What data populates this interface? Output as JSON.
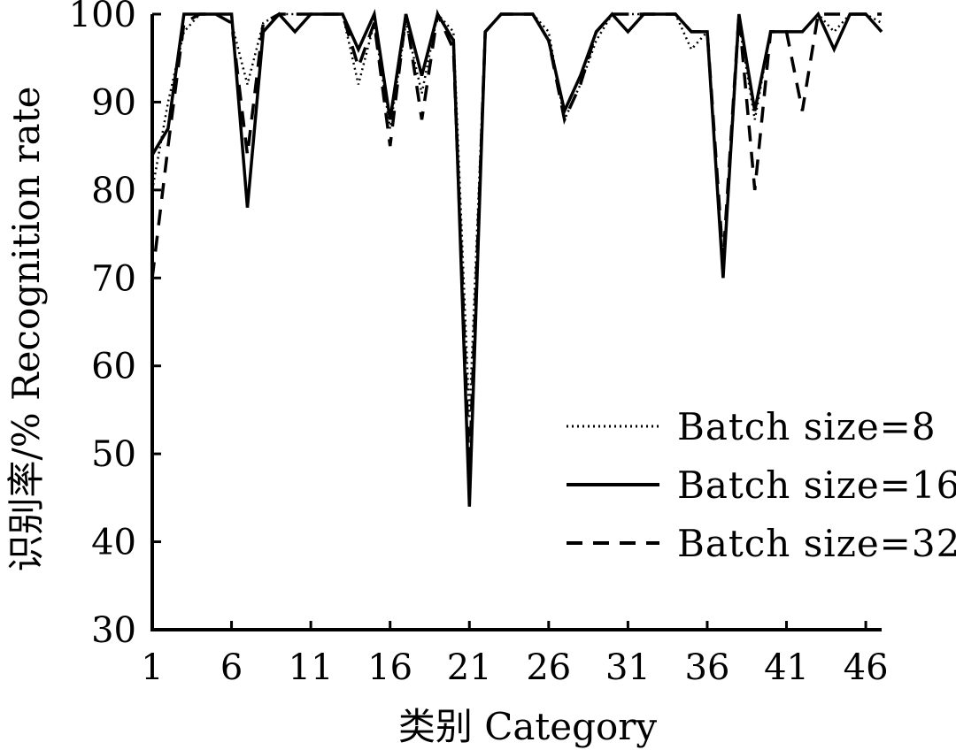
{
  "chart_data": {
    "type": "line",
    "xlabel": "类别 Category",
    "ylabel": "识别率/% Recognition rate",
    "ylim": [
      30,
      100
    ],
    "xlim": [
      1,
      47
    ],
    "yticks": [
      30,
      40,
      50,
      60,
      70,
      80,
      90,
      100
    ],
    "xticks": [
      1,
      6,
      11,
      16,
      21,
      26,
      31,
      36,
      41,
      46
    ],
    "grid": false,
    "legend_position": "right",
    "x": [
      1,
      2,
      3,
      4,
      5,
      6,
      7,
      8,
      9,
      10,
      11,
      12,
      13,
      14,
      15,
      16,
      17,
      18,
      19,
      20,
      21,
      22,
      23,
      24,
      25,
      26,
      27,
      28,
      29,
      30,
      31,
      32,
      33,
      34,
      35,
      36,
      37,
      38,
      39,
      40,
      41,
      42,
      43,
      44,
      45,
      46,
      47
    ],
    "series": [
      {
        "name": "Batch  size=8",
        "style": "dotted",
        "values": [
          80,
          90,
          98,
          100,
          100,
          99,
          92,
          99,
          100,
          100,
          100,
          100,
          100,
          92,
          99,
          87,
          99,
          91,
          100,
          98,
          54,
          98,
          100,
          100,
          100,
          98,
          88,
          92,
          97,
          100,
          100,
          100,
          100,
          100,
          96,
          98,
          70,
          99,
          88,
          98,
          98,
          98,
          100,
          98,
          100,
          100,
          99
        ]
      },
      {
        "name": "Batch  size=16",
        "style": "solid",
        "values": [
          84,
          87,
          100,
          100,
          100,
          100,
          78,
          98,
          100,
          98,
          100,
          100,
          100,
          96,
          100,
          88,
          100,
          93,
          100,
          97,
          44,
          98,
          100,
          100,
          100,
          97,
          89,
          93,
          98,
          100,
          98,
          100,
          100,
          100,
          98,
          98,
          70,
          100,
          89,
          98,
          98,
          98,
          100,
          96,
          100,
          100,
          98
        ]
      },
      {
        "name": "Batch  size=32",
        "style": "dashed",
        "values": [
          70,
          85,
          99,
          100,
          100,
          99,
          84,
          99,
          100,
          100,
          100,
          100,
          100,
          94,
          99,
          85,
          100,
          88,
          100,
          96,
          48,
          98,
          100,
          100,
          100,
          97,
          88,
          92,
          98,
          100,
          100,
          100,
          100,
          100,
          98,
          98,
          72,
          100,
          80,
          98,
          98,
          89,
          100,
          100,
          100,
          100,
          100
        ]
      }
    ]
  }
}
